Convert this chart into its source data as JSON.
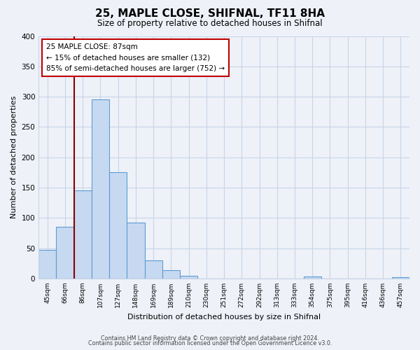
{
  "title": "25, MAPLE CLOSE, SHIFNAL, TF11 8HA",
  "subtitle": "Size of property relative to detached houses in Shifnal",
  "xlabel": "Distribution of detached houses by size in Shifnal",
  "ylabel": "Number of detached properties",
  "bar_labels": [
    "45sqm",
    "66sqm",
    "86sqm",
    "107sqm",
    "127sqm",
    "148sqm",
    "169sqm",
    "189sqm",
    "210sqm",
    "230sqm",
    "251sqm",
    "272sqm",
    "292sqm",
    "313sqm",
    "333sqm",
    "354sqm",
    "375sqm",
    "395sqm",
    "416sqm",
    "436sqm",
    "457sqm"
  ],
  "bar_values": [
    47,
    85,
    145,
    295,
    175,
    92,
    30,
    14,
    5,
    0,
    0,
    0,
    0,
    0,
    0,
    3,
    0,
    0,
    0,
    0,
    2
  ],
  "bar_color": "#c7d9f0",
  "bar_edge_color": "#5b9bd5",
  "vline_position": 2.5,
  "vline_color": "#8b0000",
  "annotation_title": "25 MAPLE CLOSE: 87sqm",
  "annotation_line1": "← 15% of detached houses are smaller (132)",
  "annotation_line2": "85% of semi-detached houses are larger (752) →",
  "annotation_box_color": "#ffffff",
  "annotation_box_edge": "#c00000",
  "ylim": [
    0,
    400
  ],
  "yticks": [
    0,
    50,
    100,
    150,
    200,
    250,
    300,
    350,
    400
  ],
  "footer_line1": "Contains HM Land Registry data © Crown copyright and database right 2024.",
  "footer_line2": "Contains public sector information licensed under the Open Government Licence v3.0.",
  "bg_color": "#eef2f8",
  "plot_bg_color": "#eef2f8",
  "grid_color": "#c8d4e8"
}
